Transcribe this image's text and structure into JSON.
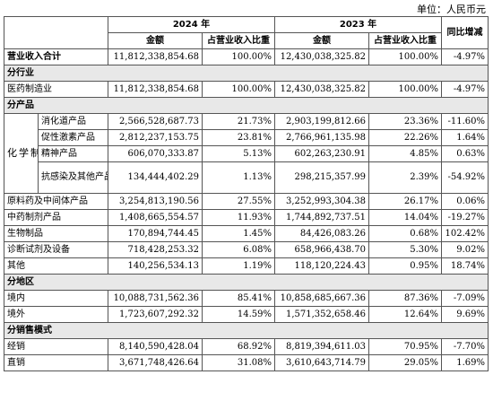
{
  "unit_label": "单位：人民币元",
  "headers": {
    "year_2024": "2024 年",
    "year_2023": "2023 年",
    "yoy": "同比增减",
    "amount": "金额",
    "share": "占营业收入比重"
  },
  "total": {
    "label": "营业收入合计",
    "amt_2024": "11,812,338,854.68",
    "pct_2024": "100.00%",
    "amt_2023": "12,430,038,325.82",
    "pct_2023": "100.00%",
    "yoy": "-4.97%"
  },
  "by_industry": {
    "title": "分行业",
    "rows": [
      {
        "label": "医药制造业",
        "amt_2024": "11,812,338,854.68",
        "pct_2024": "100.00%",
        "amt_2023": "12,430,038,325.82",
        "pct_2023": "100.00%",
        "yoy": "-4.97%"
      }
    ]
  },
  "by_product": {
    "title": "分产品",
    "chem_group_label": "化学制剂产品",
    "chem_rows": [
      {
        "label": "消化道产品",
        "amt_2024": "2,566,528,687.73",
        "pct_2024": "21.73%",
        "amt_2023": "2,903,199,812.66",
        "pct_2023": "23.36%",
        "yoy": "-11.60%"
      },
      {
        "label": "促性激素产品",
        "amt_2024": "2,812,237,153.75",
        "pct_2024": "23.81%",
        "amt_2023": "2,766,961,135.98",
        "pct_2023": "22.26%",
        "yoy": "1.64%"
      },
      {
        "label": "精神产品",
        "amt_2024": "606,070,333.87",
        "pct_2024": "5.13%",
        "amt_2023": "602,263,230.91",
        "pct_2023": "4.85%",
        "yoy": "0.63%"
      },
      {
        "label": "抗感染及其他产品",
        "amt_2024": "134,444,402.29",
        "pct_2024": "1.13%",
        "amt_2023": "298,215,357.99",
        "pct_2023": "2.39%",
        "yoy": "-54.92%"
      }
    ],
    "other_rows": [
      {
        "label": "原料药及中间体产品",
        "amt_2024": "3,254,813,190.56",
        "pct_2024": "27.55%",
        "amt_2023": "3,252,993,304.38",
        "pct_2023": "26.17%",
        "yoy": "0.06%"
      },
      {
        "label": "中药制剂产品",
        "amt_2024": "1,408,665,554.57",
        "pct_2024": "11.93%",
        "amt_2023": "1,744,892,737.51",
        "pct_2023": "14.04%",
        "yoy": "-19.27%"
      },
      {
        "label": "生物制品",
        "amt_2024": "170,894,744.45",
        "pct_2024": "1.45%",
        "amt_2023": "84,426,083.26",
        "pct_2023": "0.68%",
        "yoy": "102.42%"
      },
      {
        "label": "诊断试剂及设备",
        "amt_2024": "718,428,253.32",
        "pct_2024": "6.08%",
        "amt_2023": "658,966,438.70",
        "pct_2023": "5.30%",
        "yoy": "9.02%"
      },
      {
        "label": "其他",
        "amt_2024": "140,256,534.13",
        "pct_2024": "1.19%",
        "amt_2023": "118,120,224.43",
        "pct_2023": "0.95%",
        "yoy": "18.74%"
      }
    ]
  },
  "by_region": {
    "title": "分地区",
    "rows": [
      {
        "label": "境内",
        "amt_2024": "10,088,731,562.36",
        "pct_2024": "85.41%",
        "amt_2023": "10,858,685,667.36",
        "pct_2023": "87.36%",
        "yoy": "-7.09%"
      },
      {
        "label": "境外",
        "amt_2024": "1,723,607,292.32",
        "pct_2024": "14.59%",
        "amt_2023": "1,571,352,658.46",
        "pct_2023": "12.64%",
        "yoy": "9.69%"
      }
    ]
  },
  "by_sales_model": {
    "title": "分销售模式",
    "rows": [
      {
        "label": "经销",
        "amt_2024": "8,140,590,428.04",
        "pct_2024": "68.92%",
        "amt_2023": "8,819,394,611.03",
        "pct_2023": "70.95%",
        "yoy": "-7.70%"
      },
      {
        "label": "直销",
        "amt_2024": "3,671,748,426.64",
        "pct_2024": "31.08%",
        "amt_2023": "3,610,643,714.79",
        "pct_2023": "29.05%",
        "yoy": "1.69%"
      }
    ]
  }
}
